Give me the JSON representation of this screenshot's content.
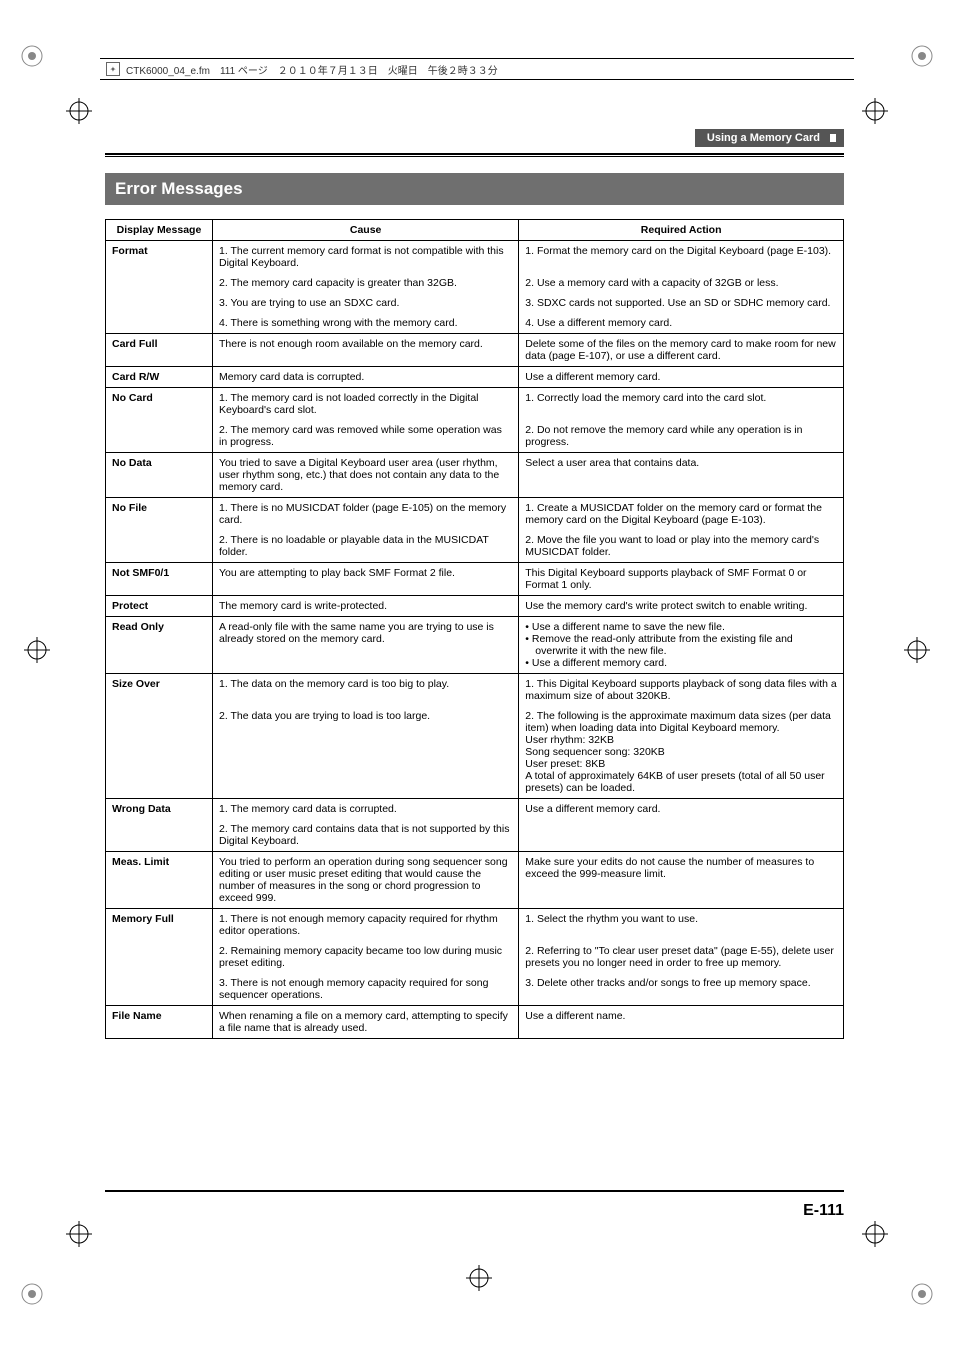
{
  "meta_header": "CTK6000_04_e.fm　111 ページ　２０１０年７月１３日　火曜日　午後２時３３分",
  "section_label": "Using a Memory Card",
  "title": "Error Messages",
  "page_number": "E-111",
  "headers": {
    "c1": "Display Message",
    "c2": "Cause",
    "c3": "Required Action"
  },
  "rows": [
    {
      "msg": "Format",
      "span": 4,
      "entries": [
        {
          "cause": "1. The current memory card format is not compatible with this Digital Keyboard.",
          "action": "1. Format the memory card on the Digital Keyboard (page E-103)."
        },
        {
          "cause": "2. The memory card capacity is greater than 32GB.",
          "action": "2. Use a memory card with a capacity of 32GB or less."
        },
        {
          "cause": "3. You are trying to use an SDXC card.",
          "action": "3. SDXC cards not supported. Use an SD or SDHC memory card."
        },
        {
          "cause": "4. There is something wrong with the memory card.",
          "action": "4. Use a different memory card."
        }
      ]
    },
    {
      "msg": "Card Full",
      "span": 1,
      "entries": [
        {
          "cause": "There is not enough room available on the memory card.",
          "action": "Delete some of the files on the memory card to make room for new data (page E-107), or use a different card."
        }
      ]
    },
    {
      "msg": "Card R/W",
      "span": 1,
      "entries": [
        {
          "cause": "Memory card data is corrupted.",
          "action": "Use a different memory card."
        }
      ]
    },
    {
      "msg": "No Card",
      "span": 2,
      "entries": [
        {
          "cause": "1. The memory card is not loaded correctly in the Digital Keyboard's card slot.",
          "action": "1. Correctly load the memory card into the card slot."
        },
        {
          "cause": "2. The memory card was removed while some operation was in progress.",
          "action": "2. Do not remove the memory card while any operation is in progress."
        }
      ]
    },
    {
      "msg": "No Data",
      "span": 1,
      "entries": [
        {
          "cause": "You tried to save a Digital Keyboard user area (user rhythm, user rhythm song, etc.) that does not contain any data to the memory card.",
          "action": "Select a user area that contains data."
        }
      ]
    },
    {
      "msg": "No File",
      "span": 2,
      "entries": [
        {
          "cause": "1. There is no MUSICDAT folder (page E-105) on the memory card.",
          "action": "1. Create a MUSICDAT folder on the memory card or format the memory card on the Digital Keyboard (page E-103)."
        },
        {
          "cause": "2. There is no loadable or playable data in the MUSICDAT folder.",
          "action": "2. Move the file you want to load or play into the memory card's MUSICDAT folder."
        }
      ]
    },
    {
      "msg": "Not SMF0/1",
      "span": 1,
      "entries": [
        {
          "cause": "You are attempting to play back SMF Format 2 file.",
          "action": "This Digital Keyboard supports playback of SMF Format 0 or Format 1 only."
        }
      ]
    },
    {
      "msg": "Protect",
      "span": 1,
      "entries": [
        {
          "cause": "The memory card is write-protected.",
          "action": "Use the memory card's write protect switch to enable writing."
        }
      ]
    },
    {
      "msg": "Read Only",
      "span": 1,
      "entries": [
        {
          "cause": "A read-only file with the same name you are trying to use is already stored on the memory card.",
          "action_bullets": [
            "Use a different name to save the new file.",
            "Remove the read-only attribute from the existing file and overwrite it with the new file.",
            "Use a different memory card."
          ]
        }
      ]
    },
    {
      "msg": "Size Over",
      "span": 2,
      "entries": [
        {
          "cause": "1. The data on the memory card is too big to play.",
          "action": "1. This Digital Keyboard supports playback of song data files with a maximum size of about 320KB."
        },
        {
          "cause": "2. The data you are trying to load is too large.",
          "action": "2. The following is the approximate maximum data sizes (per data item) when loading data into Digital Keyboard memory.\nUser rhythm: 32KB\nSong sequencer song: 320KB\nUser preset: 8KB\nA total of approximately 64KB of user presets (total of all 50 user presets) can be loaded."
        }
      ]
    },
    {
      "msg": "Wrong Data",
      "span": 2,
      "action_span": true,
      "entries": [
        {
          "cause": "1. The memory card data is corrupted.",
          "action": "Use a different memory card."
        },
        {
          "cause": "2. The memory card contains data that is not supported by this Digital Keyboard."
        }
      ]
    },
    {
      "msg": "Meas. Limit",
      "span": 1,
      "entries": [
        {
          "cause": "You tried to perform an operation during song sequencer song editing or user music preset editing that would cause the number of measures in the song or chord progression to exceed 999.",
          "action": "Make sure your edits do not cause the number of measures to exceed the 999-measure limit."
        }
      ]
    },
    {
      "msg": "Memory Full",
      "span": 3,
      "entries": [
        {
          "cause": "1. There is not enough memory capacity required for rhythm editor operations.",
          "action": "1. Select the rhythm you want to use."
        },
        {
          "cause": "2. Remaining memory capacity became too low during music preset editing.",
          "action": "2. Referring to \"To clear user preset data\" (page E-55), delete user presets you no longer need in order to free up memory."
        },
        {
          "cause": "3. There is not enough memory capacity required for song sequencer operations.",
          "action": "3. Delete other tracks and/or songs to free up memory space."
        }
      ]
    },
    {
      "msg": "File Name",
      "span": 1,
      "entries": [
        {
          "cause": "When renaming a file on a memory card, attempting to specify a file name that is already used.",
          "action": "Use a different name."
        }
      ]
    }
  ]
}
